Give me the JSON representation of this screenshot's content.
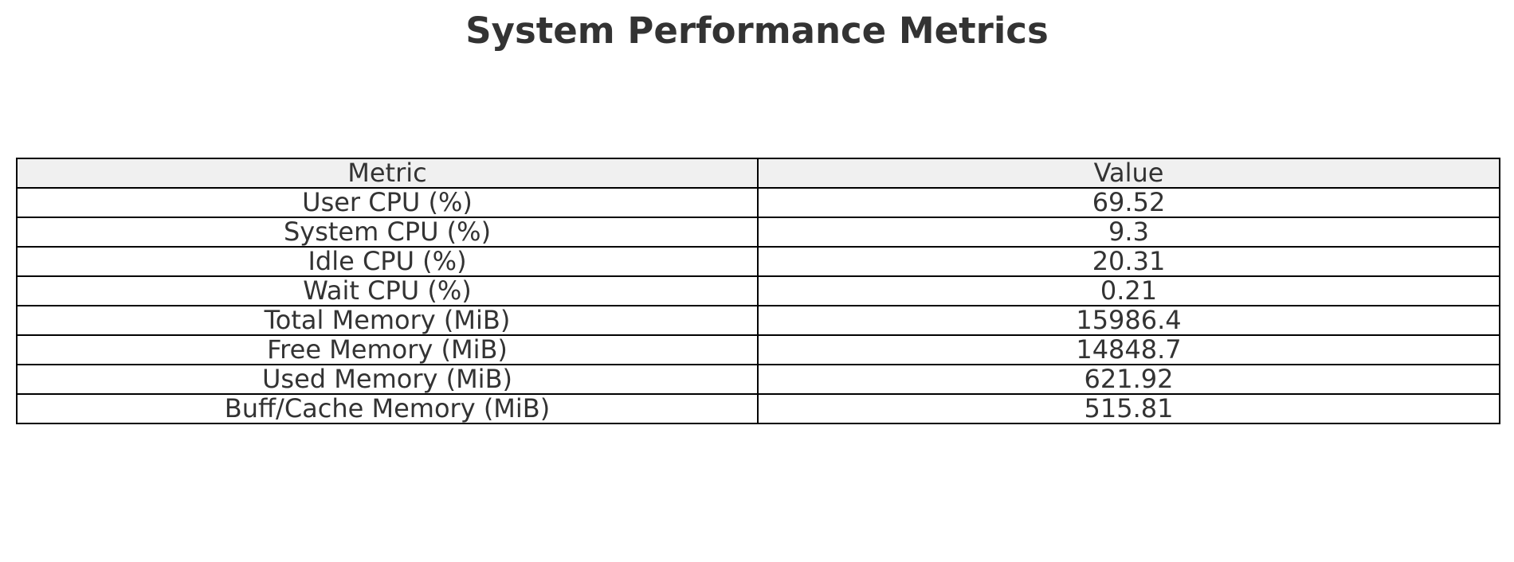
{
  "chart_data": {
    "type": "table",
    "title": "System Performance Metrics",
    "columns": [
      "Metric",
      "Value"
    ],
    "rows": [
      [
        "User CPU (%)",
        "69.52"
      ],
      [
        "System CPU (%)",
        "9.3"
      ],
      [
        "Idle CPU (%)",
        "20.31"
      ],
      [
        "Wait CPU (%)",
        "0.21"
      ],
      [
        "Total Memory (MiB)",
        "15986.4"
      ],
      [
        "Free Memory (MiB)",
        "14848.7"
      ],
      [
        "Used Memory (MiB)",
        "621.92"
      ],
      [
        "Buff/Cache Memory (MiB)",
        "515.81"
      ]
    ],
    "header_background": "#f0f0f0",
    "text_color": "#333333",
    "border_color": "#000000"
  }
}
